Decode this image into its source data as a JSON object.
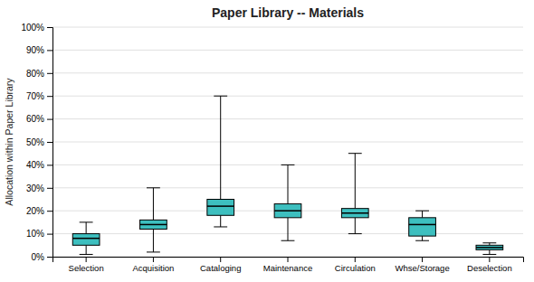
{
  "chart_data": {
    "type": "box",
    "title": "Paper Library -- Materials",
    "ylabel": "Allocation within Paper Library",
    "categories": [
      "Selection",
      "Acquisition",
      "Cataloging",
      "Maintenance",
      "Circulation",
      "Whse/Storage",
      "Deselection"
    ],
    "boxes": [
      {
        "whislo": 0.01,
        "q1": 0.05,
        "med": 0.08,
        "q3": 0.1,
        "whishi": 0.15
      },
      {
        "whislo": 0.02,
        "q1": 0.12,
        "med": 0.14,
        "q3": 0.16,
        "whishi": 0.3
      },
      {
        "whislo": 0.13,
        "q1": 0.18,
        "med": 0.22,
        "q3": 0.25,
        "whishi": 0.7
      },
      {
        "whislo": 0.07,
        "q1": 0.17,
        "med": 0.2,
        "q3": 0.23,
        "whishi": 0.4
      },
      {
        "whislo": 0.1,
        "q1": 0.17,
        "med": 0.19,
        "q3": 0.21,
        "whishi": 0.45
      },
      {
        "whislo": 0.07,
        "q1": 0.09,
        "med": 0.14,
        "q3": 0.17,
        "whishi": 0.2
      },
      {
        "whislo": 0.01,
        "q1": 0.03,
        "med": 0.04,
        "q3": 0.05,
        "whishi": 0.06
      }
    ],
    "color": "#3DBFBF",
    "ylim": [
      0,
      1.0
    ],
    "yticks": [
      {
        "value": 0.0,
        "label": "0%"
      },
      {
        "value": 0.1,
        "label": "10%"
      },
      {
        "value": 0.2,
        "label": "20%"
      },
      {
        "value": 0.3,
        "label": "30%"
      },
      {
        "value": 0.4,
        "label": "40%"
      },
      {
        "value": 0.5,
        "label": "50%"
      },
      {
        "value": 0.6,
        "label": "60%"
      },
      {
        "value": 0.7,
        "label": "70%"
      },
      {
        "value": 0.8,
        "label": "80%"
      },
      {
        "value": 0.9,
        "label": "90%"
      },
      {
        "value": 1.0,
        "label": "100%"
      }
    ],
    "grid": true
  }
}
